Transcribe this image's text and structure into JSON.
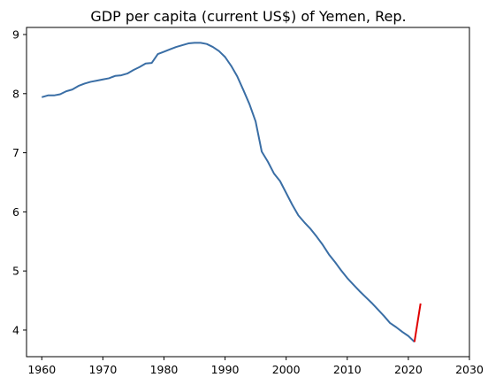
{
  "chart_data": {
    "type": "line",
    "title": "GDP per capita (current US$) of Yemen, Rep.",
    "xlabel": "",
    "ylabel": "",
    "xlim": [
      1957.5,
      2030
    ],
    "ylim": [
      3.55,
      9.12
    ],
    "x_ticks": [
      1960,
      1970,
      1980,
      1990,
      2000,
      2010,
      2020,
      2030
    ],
    "y_ticks": [
      4,
      5,
      6,
      7,
      8,
      9
    ],
    "grid": false,
    "series": [
      {
        "color": "#3a6ea5",
        "x": [
          1960,
          1961,
          1962,
          1963,
          1964,
          1965,
          1966,
          1967,
          1968,
          1969,
          1970,
          1971,
          1972,
          1973,
          1974,
          1975,
          1976,
          1977,
          1978,
          1979,
          1980,
          1981,
          1982,
          1983,
          1984,
          1985,
          1986,
          1987,
          1988,
          1989,
          1990,
          1991,
          1992,
          1993,
          1994,
          1995,
          1996,
          1997,
          1998,
          1999,
          2000,
          2001,
          2002,
          2003,
          2004,
          2005,
          2006,
          2007,
          2008,
          2009,
          2010,
          2011,
          2012,
          2013,
          2014,
          2015,
          2016,
          2017,
          2018,
          2019,
          2020,
          2021
        ],
        "y": [
          7.94,
          7.97,
          7.97,
          7.99,
          8.04,
          8.07,
          8.13,
          8.17,
          8.2,
          8.22,
          8.24,
          8.26,
          8.3,
          8.31,
          8.34,
          8.4,
          8.45,
          8.51,
          8.52,
          8.67,
          8.71,
          8.75,
          8.79,
          8.82,
          8.85,
          8.86,
          8.86,
          8.84,
          8.79,
          8.72,
          8.62,
          8.47,
          8.29,
          8.06,
          7.82,
          7.53,
          7.02,
          6.85,
          6.65,
          6.52,
          6.32,
          6.12,
          5.94,
          5.82,
          5.71,
          5.58,
          5.44,
          5.28,
          5.15,
          5.01,
          4.88,
          4.77,
          4.66,
          4.56,
          4.46,
          4.35,
          4.24,
          4.12,
          4.05,
          3.97,
          3.9,
          3.8
        ]
      },
      {
        "color": "#e00000",
        "x": [
          2021,
          2022
        ],
        "y": [
          3.8,
          4.45
        ]
      }
    ]
  }
}
